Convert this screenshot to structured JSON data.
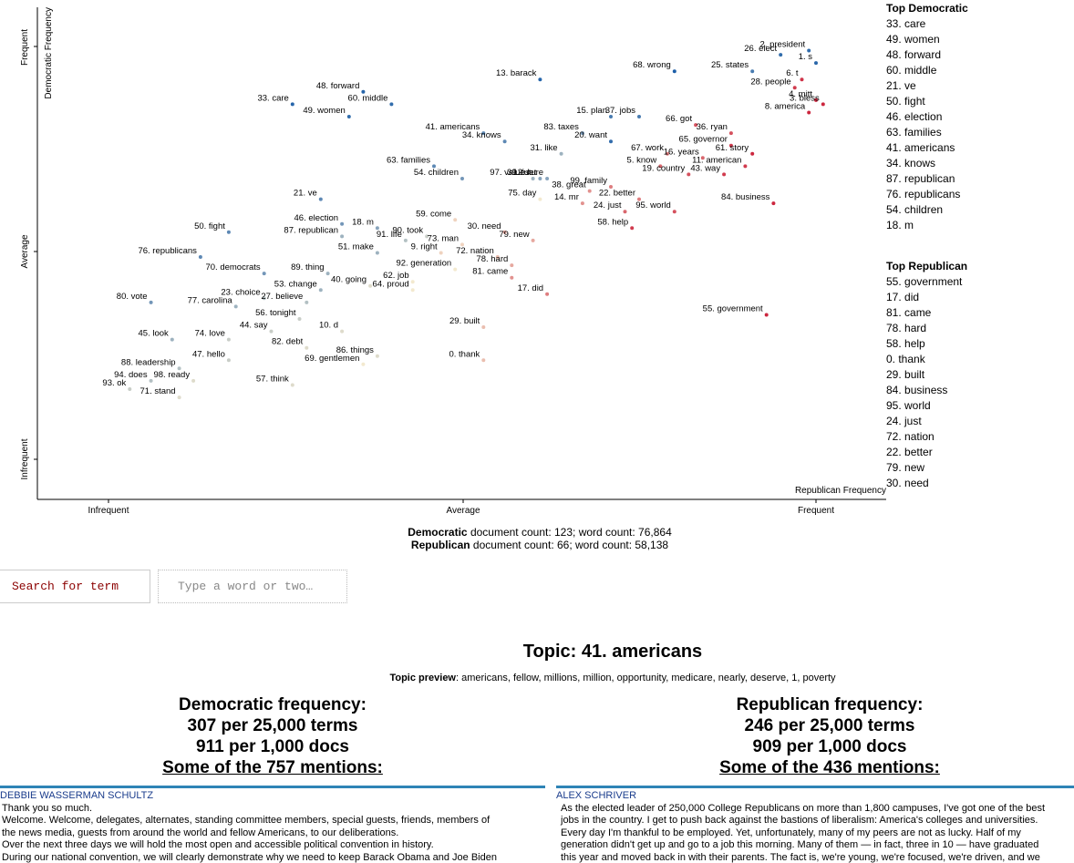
{
  "chart_data": {
    "type": "scatter",
    "xlabel": "Republican Frequency",
    "ylabel": "Democratic Frequency",
    "xticks": [
      "Infrequent",
      "Average",
      "Frequent"
    ],
    "yticks": [
      "Infrequent",
      "Average",
      "Frequent"
    ],
    "x_range": [
      0,
      1
    ],
    "y_range": [
      0,
      1
    ],
    "grid": false,
    "color_scale": [
      "#1d5fa8",
      "#f3e9cf",
      "#c8102e"
    ],
    "points": [
      {
        "label": "2. president",
        "x": 0.99,
        "y": 0.99,
        "score": 0.05
      },
      {
        "label": "26. elect",
        "x": 0.95,
        "y": 0.98,
        "score": 0.05
      },
      {
        "label": "1. s",
        "x": 1.0,
        "y": 0.96,
        "score": 0.03
      },
      {
        "label": "68. wrong",
        "x": 0.8,
        "y": 0.94,
        "score": 0.0
      },
      {
        "label": "25. states",
        "x": 0.91,
        "y": 0.94,
        "score": 0.1
      },
      {
        "label": "6. t",
        "x": 0.98,
        "y": 0.92,
        "score": 0.92
      },
      {
        "label": "28. people",
        "x": 0.97,
        "y": 0.9,
        "score": 0.9
      },
      {
        "label": "4. mitt",
        "x": 1.0,
        "y": 0.87,
        "score": 0.95
      },
      {
        "label": "3. bless",
        "x": 1.01,
        "y": 0.86,
        "score": 0.95
      },
      {
        "label": "8. america",
        "x": 0.99,
        "y": 0.84,
        "score": 0.95
      },
      {
        "label": "13. barack",
        "x": 0.61,
        "y": 0.92,
        "score": 0.02
      },
      {
        "label": "48. forward",
        "x": 0.36,
        "y": 0.89,
        "score": 0.02
      },
      {
        "label": "60. middle",
        "x": 0.4,
        "y": 0.86,
        "score": 0.05
      },
      {
        "label": "15. plan",
        "x": 0.71,
        "y": 0.83,
        "score": 0.1
      },
      {
        "label": "37. jobs",
        "x": 0.75,
        "y": 0.83,
        "score": 0.1
      },
      {
        "label": "33. care",
        "x": 0.26,
        "y": 0.86,
        "score": 0.02
      },
      {
        "label": "49. women",
        "x": 0.34,
        "y": 0.83,
        "score": 0.05
      },
      {
        "label": "66. got",
        "x": 0.83,
        "y": 0.81,
        "score": 0.85
      },
      {
        "label": "36. ryan",
        "x": 0.88,
        "y": 0.79,
        "score": 0.85
      },
      {
        "label": "83. taxes",
        "x": 0.67,
        "y": 0.79,
        "score": 0.2
      },
      {
        "label": "20. want",
        "x": 0.71,
        "y": 0.77,
        "score": 0.05
      },
      {
        "label": "65. governor",
        "x": 0.88,
        "y": 0.76,
        "score": 0.9
      },
      {
        "label": "61. story",
        "x": 0.91,
        "y": 0.74,
        "score": 0.95
      },
      {
        "label": "41. americans",
        "x": 0.53,
        "y": 0.79,
        "score": 0.15
      },
      {
        "label": "34. knows",
        "x": 0.56,
        "y": 0.77,
        "score": 0.15
      },
      {
        "label": "31. like",
        "x": 0.64,
        "y": 0.74,
        "score": 0.3
      },
      {
        "label": "67. work",
        "x": 0.79,
        "y": 0.74,
        "score": 0.75
      },
      {
        "label": "16. years",
        "x": 0.84,
        "y": 0.73,
        "score": 0.8
      },
      {
        "label": "11. american",
        "x": 0.9,
        "y": 0.71,
        "score": 0.9
      },
      {
        "label": "63. families",
        "x": 0.46,
        "y": 0.71,
        "score": 0.15
      },
      {
        "label": "5. know",
        "x": 0.78,
        "y": 0.71,
        "score": 0.8
      },
      {
        "label": "19. country",
        "x": 0.82,
        "y": 0.69,
        "score": 0.85
      },
      {
        "label": "43. way",
        "x": 0.87,
        "y": 0.69,
        "score": 0.9
      },
      {
        "label": "12. let",
        "x": 0.61,
        "y": 0.68,
        "score": 0.25
      },
      {
        "label": "39. future",
        "x": 0.62,
        "y": 0.68,
        "score": 0.25
      },
      {
        "label": "54. children",
        "x": 0.5,
        "y": 0.68,
        "score": 0.2
      },
      {
        "label": "97. values",
        "x": 0.6,
        "y": 0.68,
        "score": 0.3
      },
      {
        "label": "38. great",
        "x": 0.68,
        "y": 0.65,
        "score": 0.7
      },
      {
        "label": "99. family",
        "x": 0.71,
        "y": 0.66,
        "score": 0.75
      },
      {
        "label": "75. day",
        "x": 0.61,
        "y": 0.63,
        "score": 0.5
      },
      {
        "label": "22. better",
        "x": 0.75,
        "y": 0.63,
        "score": 0.75
      },
      {
        "label": "14. mr",
        "x": 0.67,
        "y": 0.62,
        "score": 0.7
      },
      {
        "label": "84. business",
        "x": 0.94,
        "y": 0.62,
        "score": 0.95
      },
      {
        "label": "24. just",
        "x": 0.73,
        "y": 0.6,
        "score": 0.8
      },
      {
        "label": "95. world",
        "x": 0.8,
        "y": 0.6,
        "score": 0.85
      },
      {
        "label": "21. ve",
        "x": 0.3,
        "y": 0.63,
        "score": 0.15
      },
      {
        "label": "59. come",
        "x": 0.49,
        "y": 0.58,
        "score": 0.55
      },
      {
        "label": "46. election",
        "x": 0.33,
        "y": 0.57,
        "score": 0.2
      },
      {
        "label": "18. m",
        "x": 0.38,
        "y": 0.56,
        "score": 0.25
      },
      {
        "label": "30. need",
        "x": 0.56,
        "y": 0.55,
        "score": 0.65
      },
      {
        "label": "58. help",
        "x": 0.74,
        "y": 0.56,
        "score": 0.9
      },
      {
        "label": "50. fight",
        "x": 0.17,
        "y": 0.55,
        "score": 0.15
      },
      {
        "label": "87. republican",
        "x": 0.33,
        "y": 0.54,
        "score": 0.3
      },
      {
        "label": "90. took",
        "x": 0.45,
        "y": 0.54,
        "score": 0.4
      },
      {
        "label": "79. new",
        "x": 0.6,
        "y": 0.53,
        "score": 0.65
      },
      {
        "label": "91. life",
        "x": 0.42,
        "y": 0.53,
        "score": 0.35
      },
      {
        "label": "73. man",
        "x": 0.5,
        "y": 0.52,
        "score": 0.55
      },
      {
        "label": "51. make",
        "x": 0.38,
        "y": 0.5,
        "score": 0.3
      },
      {
        "label": "9. right",
        "x": 0.47,
        "y": 0.5,
        "score": 0.55
      },
      {
        "label": "72. nation",
        "x": 0.55,
        "y": 0.49,
        "score": 0.6
      },
      {
        "label": "76. republicans",
        "x": 0.13,
        "y": 0.49,
        "score": 0.15
      },
      {
        "label": "78. hard",
        "x": 0.57,
        "y": 0.47,
        "score": 0.65
      },
      {
        "label": "92. generation",
        "x": 0.49,
        "y": 0.46,
        "score": 0.5
      },
      {
        "label": "81. came",
        "x": 0.57,
        "y": 0.44,
        "score": 0.7
      },
      {
        "label": "70. democrats",
        "x": 0.22,
        "y": 0.45,
        "score": 0.2
      },
      {
        "label": "89. thing",
        "x": 0.31,
        "y": 0.45,
        "score": 0.3
      },
      {
        "label": "40. going",
        "x": 0.37,
        "y": 0.42,
        "score": 0.45
      },
      {
        "label": "62. job",
        "x": 0.43,
        "y": 0.43,
        "score": 0.5
      },
      {
        "label": "64. proud",
        "x": 0.43,
        "y": 0.41,
        "score": 0.5
      },
      {
        "label": "17. did",
        "x": 0.62,
        "y": 0.4,
        "score": 0.75
      },
      {
        "label": "53. change",
        "x": 0.3,
        "y": 0.41,
        "score": 0.3
      },
      {
        "label": "23. choice",
        "x": 0.22,
        "y": 0.39,
        "score": 0.35
      },
      {
        "label": "80. vote",
        "x": 0.06,
        "y": 0.38,
        "score": 0.2
      },
      {
        "label": "27. believe",
        "x": 0.28,
        "y": 0.38,
        "score": 0.35
      },
      {
        "label": "77. carolina",
        "x": 0.18,
        "y": 0.37,
        "score": 0.3
      },
      {
        "label": "56. tonight",
        "x": 0.27,
        "y": 0.34,
        "score": 0.4
      },
      {
        "label": "55. government",
        "x": 0.93,
        "y": 0.35,
        "score": 0.95
      },
      {
        "label": "44. say",
        "x": 0.23,
        "y": 0.31,
        "score": 0.4
      },
      {
        "label": "10. d",
        "x": 0.33,
        "y": 0.31,
        "score": 0.45
      },
      {
        "label": "29. built",
        "x": 0.53,
        "y": 0.32,
        "score": 0.6
      },
      {
        "label": "45. look",
        "x": 0.09,
        "y": 0.29,
        "score": 0.3
      },
      {
        "label": "74. love",
        "x": 0.17,
        "y": 0.29,
        "score": 0.4
      },
      {
        "label": "82. debt",
        "x": 0.28,
        "y": 0.27,
        "score": 0.45
      },
      {
        "label": "86. things",
        "x": 0.38,
        "y": 0.25,
        "score": 0.45
      },
      {
        "label": "0. thank",
        "x": 0.53,
        "y": 0.24,
        "score": 0.6
      },
      {
        "label": "47. hello",
        "x": 0.17,
        "y": 0.24,
        "score": 0.4
      },
      {
        "label": "88. leadership",
        "x": 0.1,
        "y": 0.22,
        "score": 0.35
      },
      {
        "label": "69. gentlemen",
        "x": 0.36,
        "y": 0.23,
        "score": 0.5
      },
      {
        "label": "94. does",
        "x": 0.06,
        "y": 0.19,
        "score": 0.35
      },
      {
        "label": "98. ready",
        "x": 0.12,
        "y": 0.19,
        "score": 0.45
      },
      {
        "label": "57. think",
        "x": 0.26,
        "y": 0.18,
        "score": 0.45
      },
      {
        "label": "93. ok",
        "x": 0.03,
        "y": 0.17,
        "score": 0.4
      },
      {
        "label": "71. stand",
        "x": 0.1,
        "y": 0.15,
        "score": 0.45
      }
    ]
  },
  "top_democratic": {
    "title": "Top Democratic",
    "items": [
      "33. care",
      "49. women",
      "48. forward",
      "60. middle",
      "21. ve",
      "50. fight",
      "46. election",
      "63. families",
      "41. americans",
      "34. knows",
      "87. republican",
      "76. republicans",
      "54. children",
      "18. m"
    ]
  },
  "top_republican": {
    "title": "Top Republican",
    "items": [
      "55. government",
      "17. did",
      "81. came",
      "78. hard",
      "58. help",
      "0. thank",
      "29. built",
      "84. business",
      "95. world",
      "24. just",
      "72. nation",
      "22. better",
      "79. new",
      "30. need"
    ]
  },
  "counts": {
    "dem_label": "Democratic",
    "dem_text": " document count: 123; word count: 76,864",
    "rep_label": "Republican",
    "rep_text": " document count: 66; word count: 58,138"
  },
  "search": {
    "button_label": "Search for term",
    "placeholder": "Type a word or two…"
  },
  "topic": {
    "title": "Topic: 41. americans",
    "preview_label": "Topic preview",
    "preview_text": ": americans, fellow, millions, million, opportunity, medicare, nearly, deserve, 1, poverty"
  },
  "dem_frequency": {
    "heading": "Democratic frequency:",
    "per_terms": "307 per 25,000 terms",
    "per_docs": "911 per 1,000 docs",
    "mentions": "Some of the 757 mentions:"
  },
  "rep_frequency": {
    "heading": "Republican frequency:",
    "per_terms": "246 per 25,000 terms",
    "per_docs": "909 per 1,000 docs",
    "mentions": "Some of the 436 mentions:"
  },
  "dem_snippet": {
    "speaker": "DEBBIE WASSERMAN SCHULTZ",
    "lines": [
      "Thank you so much.",
      "Welcome. Welcome, delegates, alternates, standing committee members, special guests, friends, members of",
      "the news media, guests from around the world and fellow Americans, to our deliberations.",
      "Over the next three days we will hold the most open and accessible political convention in history.",
      "During our national convention, we will clearly demonstrate why we need to keep Barack Obama and Joe Biden"
    ]
  },
  "rep_snippet": {
    "speaker": "ALEX SCHRIVER",
    "lines": [
      "As the elected leader of 250,000 College Republicans on more than 1,800 campuses, I've got one of the best",
      "jobs in the country. I get to push back against the bastions of liberalism: America's colleges and universities.",
      "Every day I'm thankful to be employed. Yet, unfortunately, many of my peers are not as lucky. Half of my",
      "generation didn't get up and go to a job this morning. Many of them — in fact, three in 10 — have graduated",
      "this year and moved back in with their parents. The fact is, we're young, we're focused, we're driven, and we"
    ]
  }
}
